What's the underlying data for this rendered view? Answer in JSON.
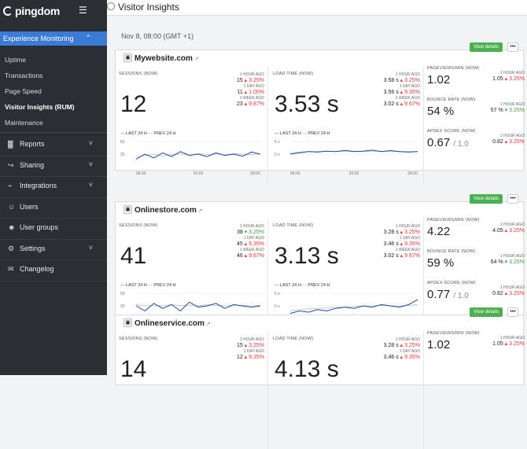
{
  "sidebar": {
    "brand": "pingdom",
    "section": "Experience Monitoring",
    "sub_items": [
      "Uptime",
      "Transactions",
      "Page Speed",
      "Visitor Insights (RUM)",
      "Maintenance"
    ],
    "active_sub": 3,
    "nav_items": [
      {
        "label": "Reports",
        "icon": "bar-chart-icon",
        "chevron": true
      },
      {
        "label": "Sharing",
        "icon": "share-icon",
        "chevron": true
      },
      {
        "label": "Integrations",
        "icon": "plug-icon",
        "chevron": true
      },
      {
        "label": "Users",
        "icon": "user-icon",
        "chevron": false
      },
      {
        "label": "User groups",
        "icon": "users-icon",
        "chevron": false
      },
      {
        "label": "Settings",
        "icon": "gear-icon",
        "chevron": true
      },
      {
        "label": "Changelog",
        "icon": "megaphone-icon",
        "chevron": false
      }
    ]
  },
  "header": {
    "title": "Visitor Insights"
  },
  "date_label": "Nov 8, 08:00 (GMT +1)",
  "view_details_label": "View details",
  "more_label": "•••",
  "labels": {
    "sessions": "SESSIONS (NOW)",
    "load": "LOAD TIME (NOW)",
    "pageviews": "PAGEVIEWS/MIN (NOW)",
    "bounce": "BOUNCE RATE (NOW)",
    "apdex": "APDEX SCORE (NOW)",
    "h": "1 HOUR AGO",
    "d": "1 DAY AGO",
    "w": "1 WEEK AGO",
    "last24": "LAST 24 H",
    "prev24": "PREV 24 H"
  },
  "sites": [
    {
      "name": "Mywebsite.com",
      "sessions": {
        "now": "12",
        "comps": [
          {
            "v": "15",
            "d": "3.25%",
            "dir": "up"
          },
          {
            "v": "11",
            "d": "1.00%",
            "dir": "up"
          },
          {
            "v": "23",
            "d": "9.87%",
            "dir": "up"
          }
        ],
        "y_ticks": [
          "50",
          "25"
        ],
        "x_ticks": [
          "08:00",
          "20:00",
          "08:00"
        ],
        "series": [
          0.3,
          0.5,
          0.35,
          0.55,
          0.4,
          0.6,
          0.45,
          0.5,
          0.4,
          0.55,
          0.45,
          0.5,
          0.42,
          0.58,
          0.5
        ],
        "prev": [
          0.4,
          0.45,
          0.5,
          0.42,
          0.48,
          0.5,
          0.46,
          0.52,
          0.48,
          0.5,
          0.47,
          0.52,
          0.5,
          0.48,
          0.5
        ]
      },
      "load": {
        "now": "3.53 s",
        "comps": [
          {
            "v": "3.58 s",
            "d": "3.25%",
            "dir": "up"
          },
          {
            "v": "3.56 s",
            "d": "9.35%",
            "dir": "up"
          },
          {
            "v": "3.02 s",
            "d": "9.67%",
            "dir": "up"
          }
        ],
        "y_ticks": [
          "5 s",
          "0 s"
        ],
        "x_ticks": [
          "08:00",
          "20:00",
          "08:00"
        ],
        "series": [
          0.5,
          0.55,
          0.6,
          0.58,
          0.62,
          0.6,
          0.65,
          0.6,
          0.62,
          0.66,
          0.6,
          0.64,
          0.6,
          0.58,
          0.6
        ],
        "prev": [
          0.55,
          0.58,
          0.6,
          0.6,
          0.62,
          0.6,
          0.61,
          0.62,
          0.6,
          0.62,
          0.61,
          0.6,
          0.6,
          0.6,
          0.6
        ]
      },
      "pageviews": {
        "now": "1.02",
        "comp": {
          "v": "1.05",
          "d": "3.25%",
          "dir": "up"
        }
      },
      "bounce": {
        "now": "54 %",
        "comp": {
          "v": "57 %",
          "d": "3.25%",
          "dir": "dn"
        }
      },
      "apdex": {
        "now": "0.67",
        "total": "/ 1.0",
        "comp": {
          "v": "0.82",
          "d": "3.25%",
          "dir": "up"
        }
      }
    },
    {
      "name": "Onlinestore.com",
      "sessions": {
        "now": "41",
        "comps": [
          {
            "v": "38",
            "d": "3.25%",
            "dir": "dn"
          },
          {
            "v": "45",
            "d": "9.35%",
            "dir": "up"
          },
          {
            "v": "46",
            "d": "9.67%",
            "dir": "up"
          }
        ],
        "y_ticks": [
          "50",
          "25"
        ],
        "x_ticks": [
          "08:00",
          "20:00",
          "08:00"
        ],
        "series": [
          0.5,
          0.3,
          0.6,
          0.4,
          0.55,
          0.3,
          0.65,
          0.45,
          0.5,
          0.6,
          0.4,
          0.55,
          0.5,
          0.45,
          0.5
        ],
        "prev": [
          0.55,
          0.5,
          0.52,
          0.5,
          0.55,
          0.5,
          0.53,
          0.5,
          0.55,
          0.52,
          0.5,
          0.53,
          0.52,
          0.5,
          0.52
        ]
      },
      "load": {
        "now": "3.13 s",
        "comps": [
          {
            "v": "3.28 s",
            "d": "3.25%",
            "dir": "up"
          },
          {
            "v": "3.46 s",
            "d": "9.35%",
            "dir": "up"
          },
          {
            "v": "3.02 s",
            "d": "9.67%",
            "dir": "up"
          }
        ],
        "y_ticks": [
          "5 s",
          "0 s"
        ],
        "x_ticks": [
          "08:00",
          "20:00",
          "08:00"
        ],
        "series": [
          0.2,
          0.3,
          0.25,
          0.35,
          0.3,
          0.4,
          0.45,
          0.4,
          0.5,
          0.45,
          0.55,
          0.5,
          0.45,
          0.55,
          0.75
        ],
        "prev": [
          0.3,
          0.35,
          0.38,
          0.4,
          0.42,
          0.45,
          0.45,
          0.48,
          0.5,
          0.5,
          0.52,
          0.5,
          0.5,
          0.52,
          0.55
        ]
      },
      "pageviews": {
        "now": "4.22",
        "comp": {
          "v": "4.05",
          "d": "3.25%",
          "dir": "up"
        }
      },
      "bounce": {
        "now": "59 %",
        "comp": {
          "v": "64 %",
          "d": "3.25%",
          "dir": "dn"
        }
      },
      "apdex": {
        "now": "0.77",
        "total": "/ 1.0",
        "comp": {
          "v": "0.82",
          "d": "3.25%",
          "dir": "up"
        }
      }
    },
    {
      "name": "Onlineservice.com",
      "sessions": {
        "now": "14",
        "comps": [
          {
            "v": "15",
            "d": "3.25%",
            "dir": "up"
          },
          {
            "v": "12",
            "d": "9.35%",
            "dir": "up"
          }
        ]
      },
      "load": {
        "now": "4.13 s",
        "comps": [
          {
            "v": "3.28 s",
            "d": "3.25%",
            "dir": "up"
          },
          {
            "v": "3.46 s",
            "d": "9.35%",
            "dir": "up"
          }
        ]
      },
      "pageviews": {
        "now": "1.02",
        "comp": {
          "v": "1.05",
          "d": "3.25%",
          "dir": "up"
        }
      }
    }
  ]
}
